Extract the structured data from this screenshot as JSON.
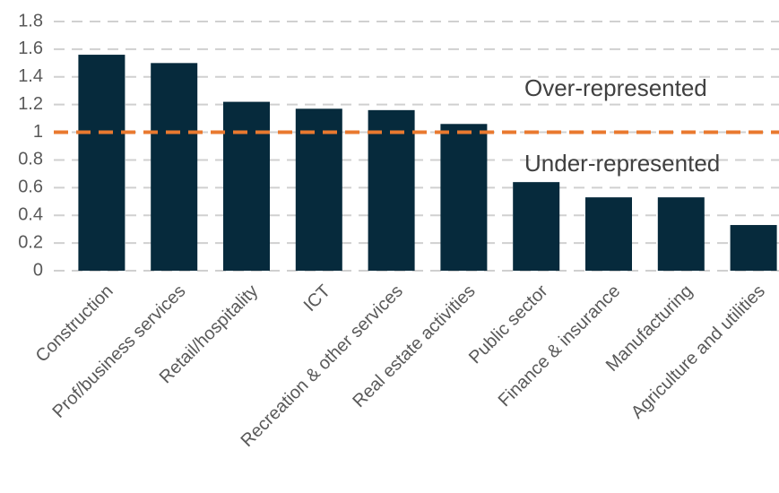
{
  "chart_data": {
    "type": "bar",
    "categories": [
      "Construction",
      "Prof/business services",
      "Retail/hospitality",
      "ICT",
      "Recreation & other services",
      "Real estate activities",
      "Public sector",
      "Finance & insurance",
      "Manufacturing",
      "Agriculture and utilities"
    ],
    "values": [
      1.56,
      1.5,
      1.22,
      1.17,
      1.16,
      1.06,
      0.64,
      0.53,
      0.53,
      0.33
    ],
    "color": "#062a3c",
    "ylim": [
      0,
      1.8
    ],
    "yticks": [
      0,
      0.2,
      0.4,
      0.6,
      0.8,
      1,
      1.2,
      1.4,
      1.6,
      1.8
    ],
    "grid": true,
    "reference_line": {
      "value": 1,
      "color": "#e9792f"
    },
    "annotations": [
      "Over-represented",
      "Under-represented"
    ]
  }
}
